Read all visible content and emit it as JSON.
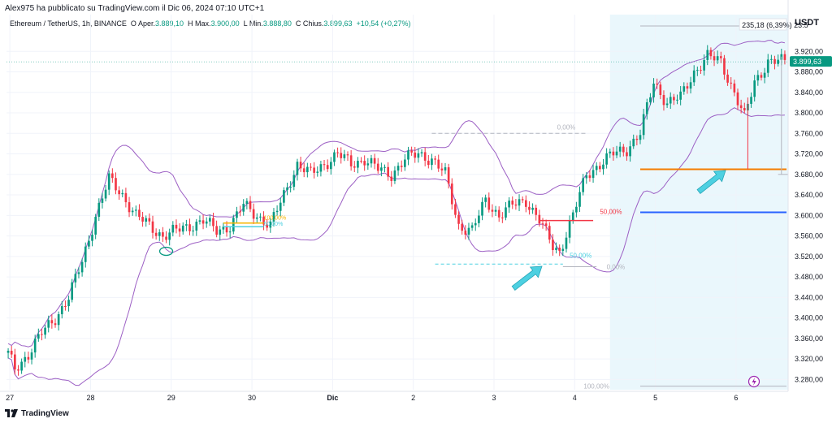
{
  "publisher_line": "Alex975 ha pubblicato su TradingView.com il Dic 06, 2024 07:10 UTC+1",
  "legend": {
    "symbol": "Ethereum / TetherUS, 1h, BINANCE",
    "open_label": "O",
    "open_prefix": "Aper.",
    "open": "3.889,10",
    "high_label": "H",
    "high_prefix": "Max.",
    "high": "3.900,00",
    "low_label": "L",
    "low_prefix": "Min.",
    "low": "3.888,80",
    "close_label": "C",
    "close_prefix": "Chius.",
    "close": "3.899,63",
    "change": "+10,54 (+0,27%)"
  },
  "currency": "USDT",
  "logo_text": "TradingView",
  "colors": {
    "up": "#089981",
    "down": "#f23645",
    "bollinger": "#9c5fc4",
    "shade": "#eaf7fc",
    "orange": "#f57c00",
    "blue": "#2962ff",
    "arrow": "#4dd0e1"
  },
  "chart_data": {
    "type": "candlestick",
    "ylim": [
      3260,
      3960
    ],
    "y_ticks": [
      "3.920,00",
      "3.880,00",
      "3.840,00",
      "3.800,00",
      "3.760,00",
      "3.720,00",
      "3.680,00",
      "3.640,00",
      "3.600,00",
      "3.560,00",
      "3.520,00",
      "3.480,00",
      "3.440,00",
      "3.400,00",
      "3.360,00",
      "3.320,00",
      "3.280,00"
    ],
    "y_tick_values": [
      3920,
      3880,
      3840,
      3800,
      3760,
      3720,
      3680,
      3640,
      3600,
      3560,
      3520,
      3480,
      3440,
      3400,
      3360,
      3320,
      3280
    ],
    "x_ticks": [
      "27",
      "28",
      "29",
      "30",
      "Dic",
      "2",
      "3",
      "4",
      "5",
      "6"
    ],
    "x_tick_values": [
      0.5,
      24.5,
      48.5,
      72.5,
      96.5,
      120.5,
      144.5,
      168.5,
      192.5,
      216.5
    ],
    "candle_count": 232,
    "price_anchors": [
      [
        0,
        3330
      ],
      [
        2,
        3300
      ],
      [
        6,
        3330
      ],
      [
        10,
        3370
      ],
      [
        14,
        3400
      ],
      [
        18,
        3440
      ],
      [
        22,
        3510
      ],
      [
        26,
        3600
      ],
      [
        30,
        3670
      ],
      [
        34,
        3640
      ],
      [
        38,
        3600
      ],
      [
        42,
        3580
      ],
      [
        46,
        3560
      ],
      [
        50,
        3570
      ],
      [
        54,
        3580
      ],
      [
        58,
        3590
      ],
      [
        62,
        3570
      ],
      [
        66,
        3580
      ],
      [
        70,
        3620
      ],
      [
        74,
        3600
      ],
      [
        78,
        3580
      ],
      [
        82,
        3640
      ],
      [
        86,
        3700
      ],
      [
        90,
        3680
      ],
      [
        94,
        3700
      ],
      [
        98,
        3720
      ],
      [
        102,
        3700
      ],
      [
        106,
        3710
      ],
      [
        110,
        3690
      ],
      [
        114,
        3680
      ],
      [
        118,
        3710
      ],
      [
        122,
        3720
      ],
      [
        126,
        3710
      ],
      [
        130,
        3680
      ],
      [
        134,
        3580
      ],
      [
        138,
        3570
      ],
      [
        142,
        3630
      ],
      [
        146,
        3600
      ],
      [
        150,
        3620
      ],
      [
        154,
        3630
      ],
      [
        158,
        3590
      ],
      [
        162,
        3540
      ],
      [
        164,
        3530
      ],
      [
        168,
        3600
      ],
      [
        172,
        3680
      ],
      [
        176,
        3700
      ],
      [
        180,
        3720
      ],
      [
        184,
        3730
      ],
      [
        188,
        3760
      ],
      [
        192,
        3860
      ],
      [
        196,
        3820
      ],
      [
        200,
        3830
      ],
      [
        204,
        3880
      ],
      [
        208,
        3910
      ],
      [
        212,
        3900
      ],
      [
        216,
        3840
      ],
      [
        219,
        3790
      ],
      [
        222,
        3860
      ],
      [
        226,
        3900
      ],
      [
        231,
        3900
      ]
    ],
    "last_price": "3.899,63",
    "last_price_value": 3899.63,
    "measure_label": "235,18 (6,39%) 23.5",
    "fib_levels": [
      {
        "label": "0,00%",
        "value": 3760
      },
      {
        "label": "50,00%",
        "value": 3590
      },
      {
        "label": "50,00%",
        "value": 3505
      },
      {
        "label": "0,00%",
        "value": 3500
      },
      {
        "label": "100,00%",
        "value": 3267
      }
    ],
    "small_fib_labels": [
      "100,00%",
      "50,00%"
    ],
    "horizontal_levels": [
      {
        "name": "orange-resistance",
        "value": 3690
      },
      {
        "name": "blue-support",
        "value": 3606
      }
    ]
  }
}
